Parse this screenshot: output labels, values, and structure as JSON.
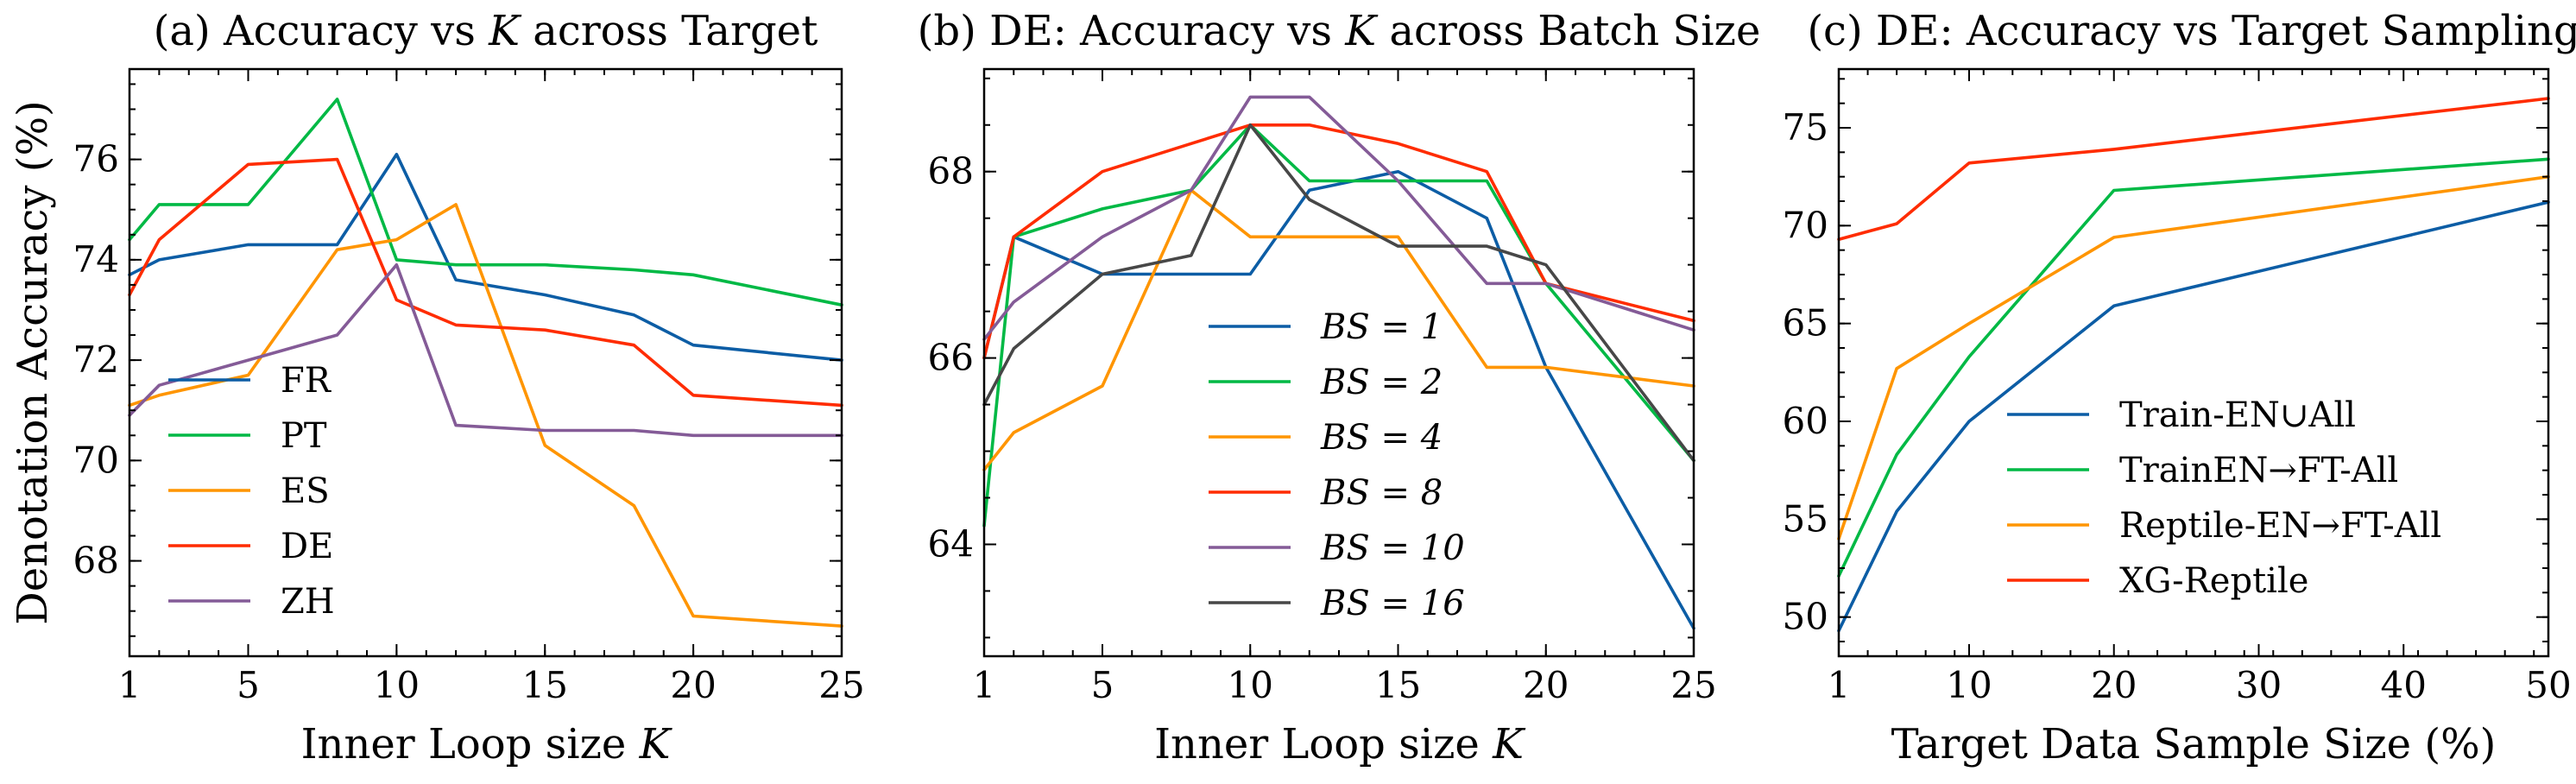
{
  "colors": {
    "blue": "#0c5da5",
    "green": "#00b945",
    "orange": "#ff9500",
    "red": "#ff2c00",
    "purple": "#845b97",
    "dark": "#474747"
  },
  "chart_data": [
    {
      "type": "line",
      "title": "(a) Accuracy vs K across Target",
      "title_parts": [
        "(a) Accuracy vs ",
        "K",
        " across Target"
      ],
      "xlabel": "Inner Loop size K",
      "xlabel_parts": [
        "Inner Loop size ",
        "K"
      ],
      "ylabel": "Denotation Accuracy (%)",
      "xlim": [
        1,
        25
      ],
      "ylim": [
        66.1,
        77.8
      ],
      "xticks": [
        1,
        5,
        10,
        15,
        20,
        25
      ],
      "yticks": [
        68,
        70,
        72,
        74,
        76
      ],
      "legend_position": "lower-left",
      "legend_italic": false,
      "series": [
        {
          "name": "FR",
          "color": "#0c5da5",
          "x": [
            1,
            2,
            5,
            8,
            10,
            12,
            15,
            18,
            20,
            25
          ],
          "y": [
            73.7,
            74.0,
            74.3,
            74.3,
            76.1,
            73.6,
            73.3,
            72.9,
            72.3,
            72.0
          ]
        },
        {
          "name": "PT",
          "color": "#00b945",
          "x": [
            1,
            2,
            5,
            8,
            10,
            12,
            15,
            18,
            20,
            25
          ],
          "y": [
            74.4,
            75.1,
            75.1,
            77.2,
            74.0,
            73.9,
            73.9,
            73.8,
            73.7,
            73.1
          ]
        },
        {
          "name": "ES",
          "color": "#ff9500",
          "x": [
            1,
            2,
            5,
            8,
            10,
            12,
            15,
            18,
            20,
            25
          ],
          "y": [
            71.1,
            71.3,
            71.7,
            74.2,
            74.4,
            75.1,
            70.3,
            69.1,
            66.9,
            66.7
          ]
        },
        {
          "name": "DE",
          "color": "#ff2c00",
          "x": [
            1,
            2,
            5,
            8,
            10,
            12,
            15,
            18,
            20,
            25
          ],
          "y": [
            73.3,
            74.4,
            75.9,
            76.0,
            73.2,
            72.7,
            72.6,
            72.3,
            71.3,
            71.1
          ]
        },
        {
          "name": "ZH",
          "color": "#845b97",
          "x": [
            1,
            2,
            5,
            8,
            10,
            12,
            15,
            18,
            20,
            25
          ],
          "y": [
            70.9,
            71.5,
            72.0,
            72.5,
            73.9,
            70.7,
            70.6,
            70.6,
            70.5,
            70.5
          ]
        }
      ]
    },
    {
      "type": "line",
      "title": "(b) DE: Accuracy vs K across Batch Size",
      "title_parts": [
        "(b) DE: Accuracy vs ",
        "K",
        " across Batch Size"
      ],
      "xlabel": "Inner Loop size K",
      "xlabel_parts": [
        "Inner Loop size ",
        "K"
      ],
      "ylabel": "",
      "xlim": [
        1,
        25
      ],
      "ylim": [
        62.8,
        69.1
      ],
      "xticks": [
        1,
        5,
        10,
        15,
        20,
        25
      ],
      "yticks": [
        64,
        66,
        68
      ],
      "legend_position": "lower-center",
      "legend_italic": true,
      "series": [
        {
          "name": "BS = 1",
          "color": "#0c5da5",
          "x": [
            1,
            2,
            5,
            8,
            10,
            12,
            15,
            18,
            20,
            25
          ],
          "y": [
            66.0,
            67.3,
            66.9,
            66.9,
            66.9,
            67.8,
            68.0,
            67.5,
            65.9,
            63.1
          ]
        },
        {
          "name": "BS = 2",
          "color": "#00b945",
          "x": [
            1,
            2,
            5,
            8,
            10,
            12,
            15,
            18,
            20,
            25
          ],
          "y": [
            64.2,
            67.3,
            67.6,
            67.8,
            68.5,
            67.9,
            67.9,
            67.9,
            66.8,
            64.9
          ]
        },
        {
          "name": "BS = 4",
          "color": "#ff9500",
          "x": [
            1,
            2,
            5,
            8,
            10,
            12,
            15,
            18,
            20,
            25
          ],
          "y": [
            64.8,
            65.2,
            65.7,
            67.8,
            67.3,
            67.3,
            67.3,
            65.9,
            65.9,
            65.7
          ]
        },
        {
          "name": "BS = 8",
          "color": "#ff2c00",
          "x": [
            1,
            2,
            5,
            8,
            10,
            12,
            15,
            18,
            20,
            25
          ],
          "y": [
            66.0,
            67.3,
            68.0,
            68.3,
            68.5,
            68.5,
            68.3,
            68.0,
            66.8,
            66.4
          ]
        },
        {
          "name": "BS = 10",
          "color": "#845b97",
          "x": [
            1,
            2,
            5,
            8,
            10,
            12,
            15,
            18,
            20,
            25
          ],
          "y": [
            66.2,
            66.6,
            67.3,
            67.8,
            68.8,
            68.8,
            67.9,
            66.8,
            66.8,
            66.3
          ]
        },
        {
          "name": "BS = 16",
          "color": "#474747",
          "x": [
            1,
            2,
            5,
            8,
            10,
            12,
            15,
            18,
            20,
            25
          ],
          "y": [
            65.5,
            66.1,
            66.9,
            67.1,
            68.5,
            67.7,
            67.2,
            67.2,
            67.0,
            64.9
          ]
        }
      ]
    },
    {
      "type": "line",
      "title": "(c) DE: Accuracy vs Target Sampling",
      "xlabel": "Target Data Sample Size (%)",
      "ylabel": "",
      "xlim": [
        1,
        50
      ],
      "ylim": [
        48.0,
        78.0
      ],
      "xticks": [
        1,
        10,
        20,
        30,
        40,
        50
      ],
      "yticks": [
        50,
        55,
        60,
        65,
        70,
        75
      ],
      "legend_position": "lower-right",
      "legend_italic": false,
      "series": [
        {
          "name": "Train-EN∪All",
          "color": "#0c5da5",
          "x": [
            1,
            5,
            10,
            20,
            50
          ],
          "y": [
            49.3,
            55.4,
            60.0,
            65.9,
            71.2
          ]
        },
        {
          "name": "TrainEN→FT-All",
          "color": "#00b945",
          "x": [
            1,
            5,
            10,
            20,
            50
          ],
          "y": [
            52.1,
            58.3,
            63.3,
            71.8,
            73.4
          ]
        },
        {
          "name": "Reptile-EN→FT-All",
          "color": "#ff9500",
          "x": [
            1,
            5,
            10,
            20,
            50
          ],
          "y": [
            54.0,
            62.7,
            65.0,
            69.4,
            72.5
          ]
        },
        {
          "name": "XG-Reptile",
          "color": "#ff2c00",
          "x": [
            1,
            5,
            10,
            20,
            50
          ],
          "y": [
            69.3,
            70.1,
            73.2,
            73.9,
            76.5
          ]
        }
      ]
    }
  ]
}
